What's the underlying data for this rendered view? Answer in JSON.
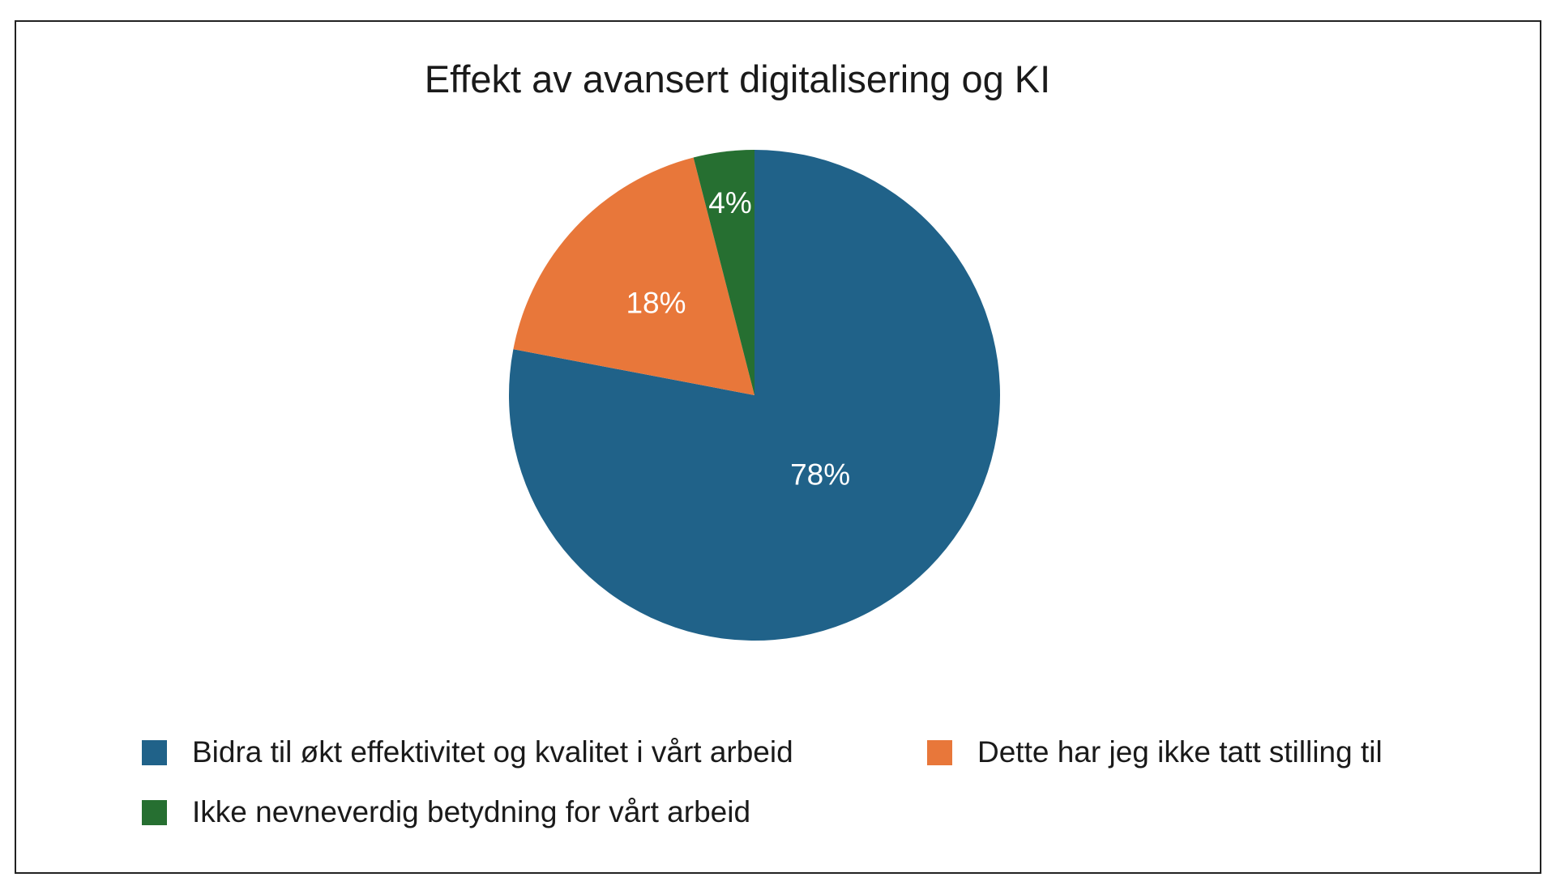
{
  "chart_data": {
    "type": "pie",
    "title": "Effekt av avansert digitalisering og KI",
    "slices": [
      {
        "label": "Bidra til økt effektivitet og kvalitet i vårt arbeid",
        "value": 78,
        "display": "78%",
        "color": "#206289"
      },
      {
        "label": "Dette har jeg ikke tatt stilling til",
        "value": 18,
        "display": "18%",
        "color": "#E8773A"
      },
      {
        "label": "Ikke nevneverdig betydning for vårt arbeid",
        "value": 4,
        "display": "4%",
        "color": "#266F31"
      }
    ],
    "start_angle_deg": 0,
    "direction": "clockwise",
    "legend_position": "bottom"
  }
}
